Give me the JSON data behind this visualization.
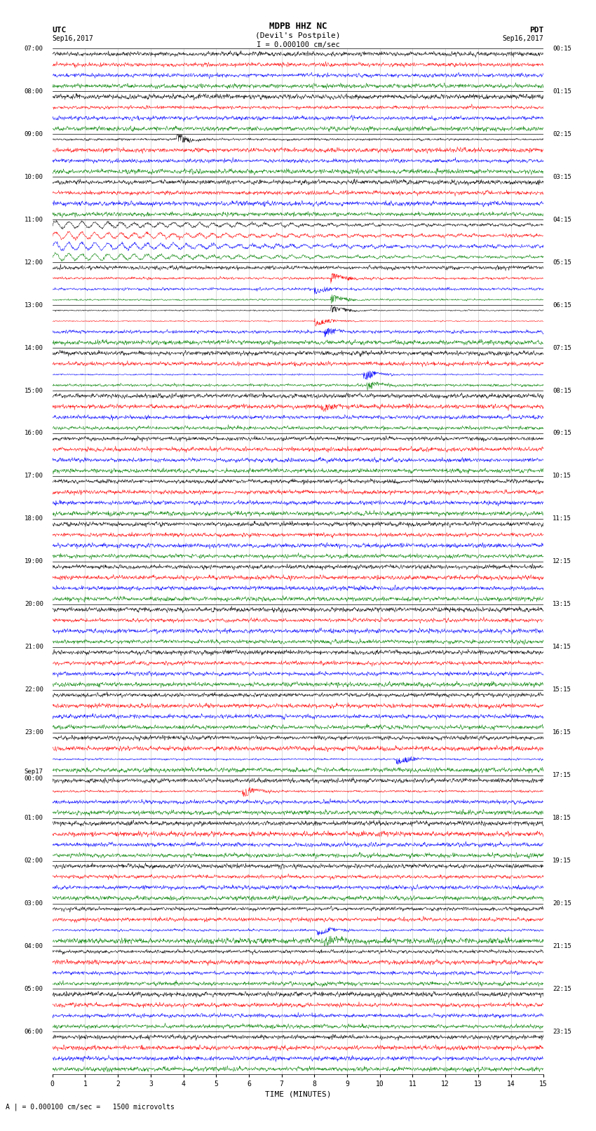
{
  "title_line1": "MDPB HHZ NC",
  "title_line2": "(Devil's Postpile)",
  "scale_text": "I = 0.000100 cm/sec",
  "xlabel": "TIME (MINUTES)",
  "footer": "A | = 0.000100 cm/sec =   1500 microvolts",
  "utc_times": [
    "07:00",
    "08:00",
    "09:00",
    "10:00",
    "11:00",
    "12:00",
    "13:00",
    "14:00",
    "15:00",
    "16:00",
    "17:00",
    "18:00",
    "19:00",
    "20:00",
    "21:00",
    "22:00",
    "23:00",
    "Sep17\n00:00",
    "01:00",
    "02:00",
    "03:00",
    "04:00",
    "05:00",
    "06:00"
  ],
  "pdt_times": [
    "00:15",
    "01:15",
    "02:15",
    "03:15",
    "04:15",
    "05:15",
    "06:15",
    "07:15",
    "08:15",
    "09:15",
    "10:15",
    "11:15",
    "12:15",
    "13:15",
    "14:15",
    "15:15",
    "16:15",
    "17:15",
    "18:15",
    "19:15",
    "20:15",
    "21:15",
    "22:15",
    "23:15"
  ],
  "colors": [
    "black",
    "red",
    "blue",
    "green"
  ],
  "n_hours": 24,
  "n_traces_per_hour": 4,
  "n_points": 1800,
  "xmin": 0,
  "xmax": 15,
  "background_color": "white",
  "line_width": 0.35,
  "grid_color": "#aaaaaa",
  "border_color": "black",
  "events": [
    {
      "trace": 8,
      "time": 3.8,
      "amp": 12.0,
      "color": "green"
    },
    {
      "trace": 21,
      "time": 8.5,
      "amp": 10.0,
      "color": "blue"
    },
    {
      "trace": 22,
      "time": 8.0,
      "amp": 8.0,
      "color": "green"
    },
    {
      "trace": 23,
      "time": 8.5,
      "amp": 15.0,
      "color": "black"
    },
    {
      "trace": 24,
      "time": 8.5,
      "amp": 18.0,
      "color": "red"
    },
    {
      "trace": 25,
      "time": 8.0,
      "amp": 20.0,
      "color": "blue"
    },
    {
      "trace": 26,
      "time": 8.3,
      "amp": 6.0,
      "color": "green"
    },
    {
      "trace": 30,
      "time": 9.5,
      "amp": 18.0,
      "color": "blue"
    },
    {
      "trace": 31,
      "time": 9.6,
      "amp": 8.0,
      "color": "green"
    },
    {
      "trace": 33,
      "time": 8.2,
      "amp": 5.0,
      "color": "red"
    },
    {
      "trace": 66,
      "time": 10.5,
      "amp": 14.0,
      "color": "blue"
    },
    {
      "trace": 69,
      "time": 5.8,
      "amp": 12.0,
      "color": "green"
    },
    {
      "trace": 82,
      "time": 8.1,
      "amp": 10.0,
      "color": "black"
    },
    {
      "trace": 83,
      "time": 8.3,
      "amp": 5.0,
      "color": "black"
    }
  ],
  "oscillation_traces": [
    16,
    17,
    18,
    19
  ]
}
